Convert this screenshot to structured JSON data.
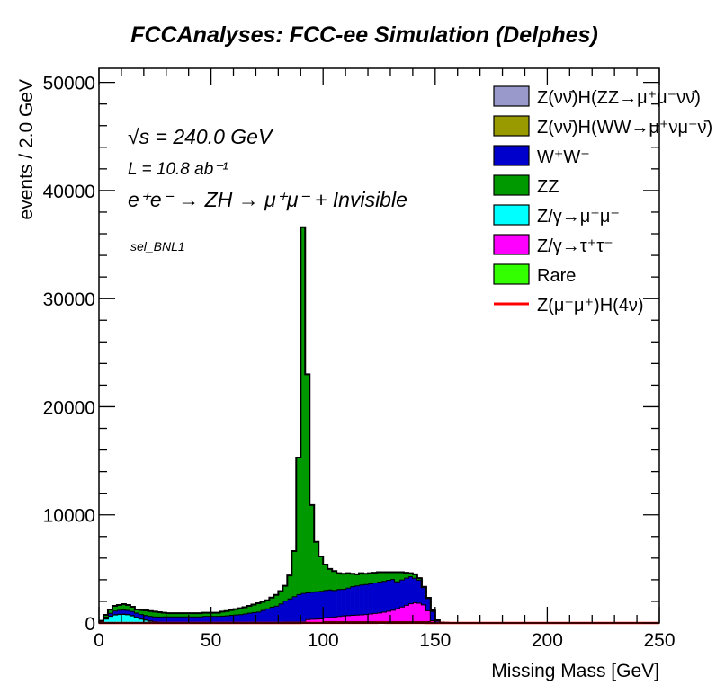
{
  "chart_data": {
    "type": "bar",
    "subtype": "stacked-histogram",
    "title": "FCCAnalyses: FCC-ee Simulation (Delphes)",
    "xlabel": "Missing Mass [GeV]",
    "ylabel": "events / 2.0 GeV",
    "xlim": [
      0,
      250
    ],
    "ylim": [
      0,
      51300
    ],
    "bin_width": 2,
    "x_start": 0,
    "xticks": [
      "0",
      "50",
      "100",
      "150",
      "200",
      "250"
    ],
    "xtick_values": [
      0,
      50,
      100,
      150,
      200,
      250
    ],
    "yticks": [
      "0",
      "10000",
      "20000",
      "30000",
      "40000",
      "50000"
    ],
    "ytick_values": [
      0,
      10000,
      20000,
      30000,
      40000,
      50000
    ],
    "grid": false,
    "legend_placement": "top-right",
    "annotations": {
      "sqrts": "√s = 240.0 GeV",
      "lumi": "L = 10.8 ab⁻¹",
      "process": "e⁺e⁻ → ZH → μ⁺μ⁻ + Invisible",
      "selection": "sel_BNL1"
    },
    "series": [
      {
        "name": "Rare",
        "color": "#33ff00",
        "values": [
          0,
          0,
          0,
          0,
          0,
          0,
          0,
          0,
          0,
          0,
          0,
          0,
          0,
          0,
          0,
          0,
          0,
          0,
          0,
          0,
          0,
          0,
          0,
          0,
          0,
          0,
          0,
          0,
          0,
          0,
          0,
          0,
          0,
          0,
          0,
          0,
          0,
          0,
          0,
          0,
          0,
          0,
          0,
          0,
          0,
          0,
          0,
          0,
          0,
          0,
          150,
          150,
          150,
          150,
          150,
          150,
          150,
          150,
          150,
          150,
          150,
          150,
          150,
          150,
          150,
          150,
          150,
          150,
          150,
          150,
          150,
          150,
          150,
          150,
          80,
          0,
          0,
          0,
          0,
          0
        ]
      },
      {
        "name": "Z/γ→μ⁺μ⁻",
        "color": "#00ffff",
        "values": [
          100,
          400,
          650,
          780,
          820,
          830,
          800,
          700,
          550,
          400,
          300,
          200,
          120,
          80,
          50,
          20,
          20,
          20,
          20,
          20,
          20,
          20,
          20,
          20,
          20,
          20,
          20,
          20,
          20,
          20,
          20,
          20,
          20,
          20,
          20,
          20,
          20,
          20,
          20,
          20,
          20,
          20,
          20,
          20,
          20,
          20,
          20,
          20,
          20,
          20,
          20,
          20,
          20,
          20,
          20,
          20,
          20,
          20,
          20,
          20,
          20,
          20,
          20,
          20,
          20,
          20,
          20,
          20,
          20,
          20,
          20,
          20,
          20,
          20,
          20,
          20,
          0,
          0,
          0,
          0
        ]
      },
      {
        "name": "Z/γ→τ⁺τ⁻",
        "color": "#ff00ff",
        "values": [
          30,
          30,
          30,
          30,
          30,
          30,
          30,
          30,
          30,
          30,
          30,
          30,
          30,
          30,
          30,
          30,
          30,
          30,
          30,
          30,
          30,
          30,
          30,
          30,
          30,
          30,
          30,
          30,
          30,
          30,
          30,
          30,
          30,
          30,
          30,
          30,
          30,
          30,
          30,
          30,
          30,
          100,
          100,
          100,
          100,
          100,
          330,
          360,
          380,
          400,
          360,
          380,
          420,
          470,
          520,
          550,
          580,
          600,
          620,
          650,
          700,
          750,
          800,
          870,
          950,
          1050,
          1200,
          1350,
          1500,
          1650,
          1750,
          1700,
          1550,
          1000,
          150,
          20,
          0,
          0,
          0,
          0
        ]
      },
      {
        "name": "W⁺W⁻",
        "color": "#0000cc",
        "values": [
          40,
          150,
          250,
          330,
          370,
          380,
          380,
          380,
          380,
          390,
          400,
          420,
          450,
          480,
          520,
          550,
          550,
          550,
          550,
          550,
          550,
          550,
          550,
          600,
          600,
          600,
          600,
          620,
          650,
          700,
          730,
          760,
          820,
          900,
          950,
          1000,
          1150,
          1300,
          1450,
          1550,
          1750,
          1950,
          2150,
          2350,
          2550,
          2650,
          2480,
          2500,
          2530,
          2550,
          2520,
          2550,
          2460,
          2500,
          2460,
          2550,
          2650,
          2700,
          2760,
          2780,
          2800,
          2820,
          2850,
          2850,
          2870,
          2850,
          2480,
          2500,
          2520,
          2500,
          2260,
          2130,
          1580,
          1130,
          850,
          200,
          30,
          0,
          0,
          0
        ]
      },
      {
        "name": "Z(νν̄)H(WW→μ⁺νμ⁻ν̄)",
        "color": "#999900",
        "values": [
          0,
          0,
          0,
          0,
          0,
          0,
          0,
          0,
          0,
          0,
          0,
          0,
          0,
          0,
          0,
          0,
          0,
          0,
          0,
          0,
          0,
          0,
          0,
          0,
          0,
          0,
          0,
          0,
          0,
          0,
          0,
          0,
          0,
          0,
          0,
          0,
          0,
          0,
          0,
          0,
          0,
          0,
          0,
          0,
          0,
          0,
          0,
          0,
          0,
          0,
          0,
          0,
          0,
          0,
          0,
          0,
          0,
          0,
          0,
          0,
          0,
          0,
          0,
          0,
          0,
          0,
          0,
          0,
          0,
          0,
          0,
          0,
          0,
          0,
          0,
          0,
          0,
          0,
          0,
          0
        ]
      },
      {
        "name": "Z(νν̄)H(ZZ→μ⁺μ⁻νν̄)",
        "color": "#9999cc",
        "values": [
          0,
          0,
          0,
          0,
          0,
          0,
          0,
          0,
          0,
          0,
          0,
          0,
          0,
          0,
          0,
          0,
          0,
          0,
          0,
          0,
          0,
          0,
          0,
          0,
          0,
          0,
          0,
          0,
          0,
          0,
          0,
          0,
          0,
          0,
          0,
          0,
          0,
          0,
          0,
          0,
          0,
          0,
          0,
          0,
          0,
          0,
          0,
          0,
          0,
          0,
          0,
          0,
          0,
          0,
          0,
          0,
          0,
          0,
          0,
          0,
          0,
          0,
          0,
          0,
          0,
          0,
          0,
          0,
          0,
          0,
          0,
          0,
          0,
          0,
          0,
          0,
          0,
          0,
          0,
          0
        ]
      },
      {
        "name": "ZZ",
        "color": "#009900",
        "values": [
          30,
          170,
          320,
          440,
          440,
          510,
          450,
          390,
          290,
          380,
          430,
          450,
          450,
          410,
          350,
          300,
          300,
          300,
          300,
          300,
          300,
          300,
          300,
          300,
          300,
          300,
          300,
          380,
          400,
          450,
          500,
          550,
          580,
          630,
          700,
          780,
          750,
          750,
          850,
          1000,
          1150,
          1370,
          2130,
          4180,
          12630,
          33830,
          20170,
          8020,
          4570,
          3180,
          2350,
          1900,
          1750,
          1460,
          1400,
          1330,
          1150,
          1030,
          1050,
          950,
          930,
          910,
          880,
          810,
          710,
          630,
          850,
          680,
          460,
          280,
          320,
          150,
          50,
          30,
          60,
          10,
          10,
          20,
          0,
          0
        ]
      }
    ],
    "signal": {
      "name": "Z(μ⁻μ⁺)H(4ν)",
      "color": "#ff0000",
      "values": [
        0,
        0,
        0,
        0,
        0,
        0,
        0,
        0,
        0,
        0,
        0,
        0,
        0,
        0,
        0,
        0,
        0,
        0,
        0,
        0,
        0,
        0,
        0,
        0,
        0,
        0,
        0,
        0,
        0,
        0,
        0,
        0,
        0,
        0,
        0,
        0,
        0,
        0,
        0,
        0,
        5,
        5,
        5,
        5,
        5,
        10,
        10,
        10,
        10,
        10,
        10,
        10,
        10,
        10,
        10,
        10,
        10,
        10,
        10,
        10,
        15,
        15,
        20,
        20,
        15,
        15,
        10,
        10,
        10,
        10,
        10,
        10,
        10,
        5,
        5,
        0,
        0,
        0,
        0,
        0
      ]
    },
    "legend": [
      {
        "label": "Z(νν̄)H(ZZ→μ⁺μ⁻νν̄)",
        "color": "#9999cc",
        "style": "fill"
      },
      {
        "label": "Z(νν̄)H(WW→μ⁺νμ⁻ν̄)",
        "color": "#999900",
        "style": "fill"
      },
      {
        "label": "W⁺W⁻",
        "color": "#0000cc",
        "style": "fill"
      },
      {
        "label": "ZZ",
        "color": "#009900",
        "style": "fill"
      },
      {
        "label": "Z/γ→μ⁺μ⁻",
        "color": "#00ffff",
        "style": "fill"
      },
      {
        "label": "Z/γ→τ⁺τ⁻",
        "color": "#ff00ff",
        "style": "fill"
      },
      {
        "label": "Rare",
        "color": "#33ff00",
        "style": "fill"
      },
      {
        "label": "Z(μ⁻μ⁺)H(4ν)",
        "color": "#ff0000",
        "style": "line"
      }
    ]
  }
}
